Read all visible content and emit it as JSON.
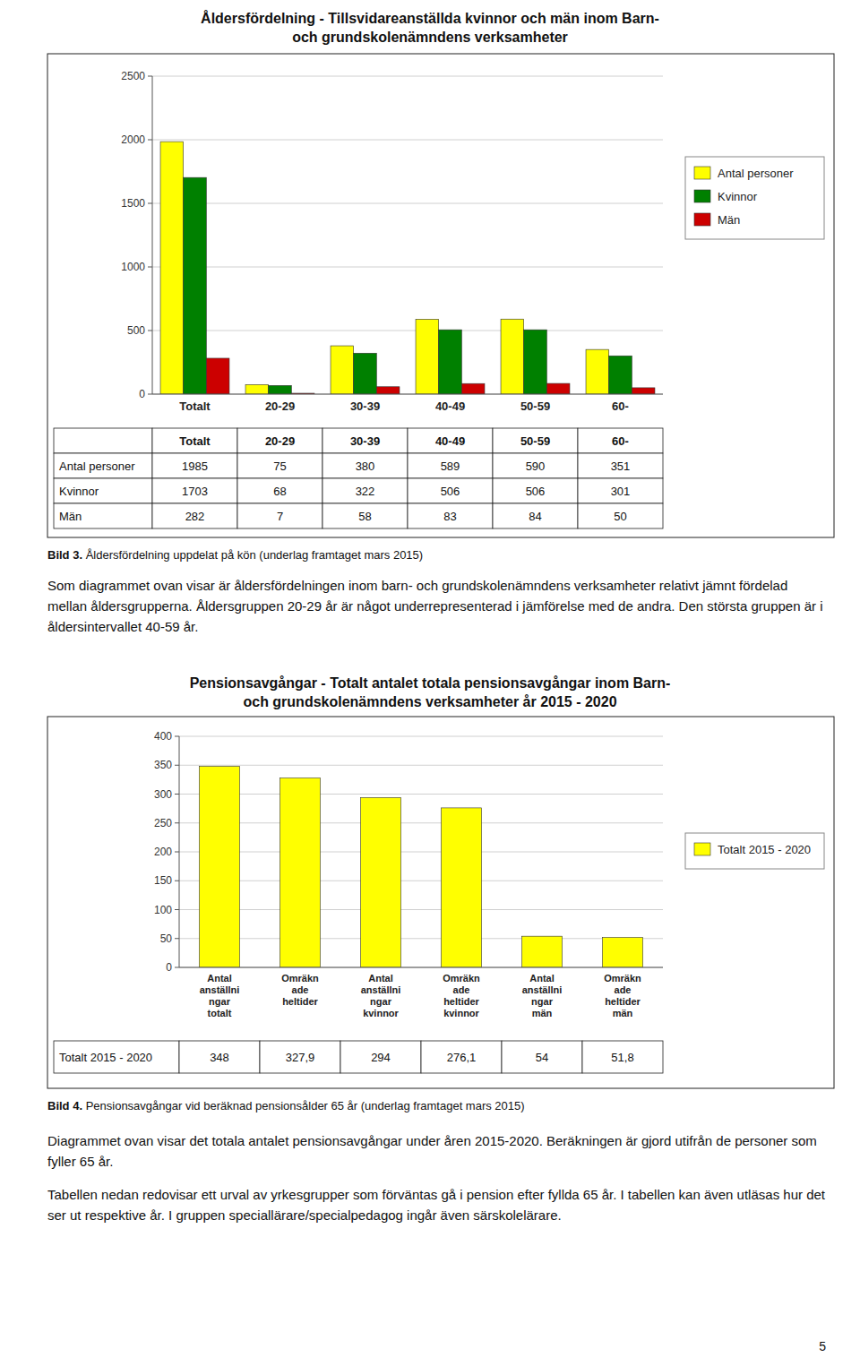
{
  "chart_data": [
    {
      "type": "bar",
      "title": "Åldersfördelning -  Tillsvidareanställda kvinnor och män inom Barn-\noch grundskolenämndens verksamheter",
      "categories": [
        "Totalt",
        "20-29",
        "30-39",
        "40-49",
        "50-59",
        "60-"
      ],
      "series": [
        {
          "name": "Antal personer",
          "color": "#FFFF00",
          "values": [
            1985,
            75,
            380,
            589,
            590,
            351
          ]
        },
        {
          "name": "Kvinnor",
          "color": "#008000",
          "values": [
            1703,
            68,
            322,
            506,
            506,
            301
          ]
        },
        {
          "name": "Män",
          "color": "#CC0000",
          "values": [
            282,
            7,
            58,
            83,
            84,
            50
          ]
        }
      ],
      "ylim": [
        0,
        2500
      ],
      "yticks": [
        0,
        500,
        1000,
        1500,
        2000,
        2500
      ],
      "grid": true,
      "legend": "right",
      "caption_label": "Bild 3.",
      "caption": "Åldersfördelning uppdelat på kön (underlag framtaget mars 2015)",
      "paragraphs": [
        "Som diagrammet ovan visar är åldersfördelningen inom barn- och grundskolenämndens verksamheter relativt jämnt fördelad mellan åldersgrupperna. Åldersgruppen 20-29 år är något underrepresenterad i jämförelse med de andra. Den största gruppen är i åldersintervallet 40-59 år."
      ]
    },
    {
      "type": "bar",
      "title": "Pensionsavgångar - Totalt antalet totala pensionsavgångar inom Barn-\noch grundskolenämndens verksamheter  år 2015 - 2020",
      "categories": [
        "Antal\nanställni\nngar\ntotalt",
        "Omräkn\nade\nheltider",
        "Antal\nanställni\nngar\nkvinnor",
        "Omräkn\nade\nheltider\nkvinnor",
        "Antal\nanställni\nngar\nmän",
        "Omräkn\nade\nheltider\nmän"
      ],
      "series": [
        {
          "name": "Totalt 2015 - 2020",
          "color": "#FFFF00",
          "values": [
            348,
            327.9,
            294,
            276.1,
            54,
            51.8
          ],
          "value_labels": [
            "348",
            "327,9",
            "294",
            "276,1",
            "54",
            "51,8"
          ]
        }
      ],
      "ylim": [
        0,
        400
      ],
      "yticks": [
        0,
        50,
        100,
        150,
        200,
        250,
        300,
        350,
        400
      ],
      "grid": true,
      "legend": "right",
      "caption_label": "Bild 4.",
      "caption": "Pensionsavgångar vid beräknad pensionsålder 65 år (underlag framtaget mars 2015)",
      "paragraphs": [
        "Diagrammet ovan visar det totala antalet pensionsavgångar under åren 2015-2020. Beräkningen är gjord utifrån de personer som fyller 65 år.",
        "Tabellen nedan redovisar ett urval av yrkesgrupper som förväntas gå i pension efter fyllda 65 år. I tabellen kan även utläsas hur det ser ut respektive år. I gruppen speciallärare/specialpedagog ingår även särskolelärare."
      ]
    }
  ],
  "page_number": "5"
}
